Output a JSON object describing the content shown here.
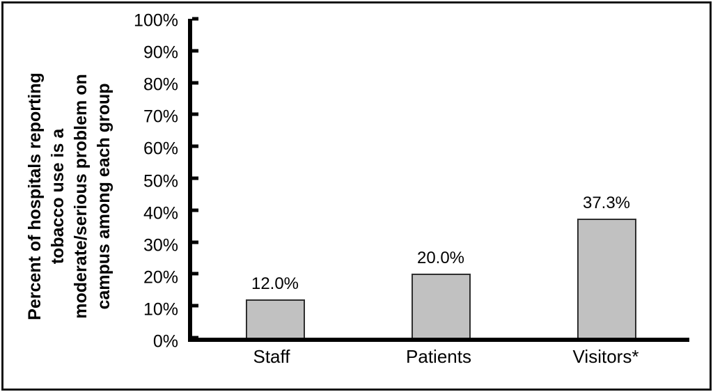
{
  "frame": {
    "background": "#ffffff",
    "border_color": "#141414"
  },
  "chart_data": {
    "type": "bar",
    "categories": [
      "Staff",
      "Patients",
      "Visitors*"
    ],
    "values": [
      12.0,
      20.0,
      37.3
    ],
    "bar_labels": [
      "12.0%",
      "20.0%",
      "37.3%"
    ],
    "title": "",
    "xlabel": "",
    "ylabel": "Percent of hospitals reporting\ntobacco use is a\nmoderate/serious problem on\ncampus among each group",
    "ylim": [
      0,
      100
    ],
    "ytick_step": 10,
    "ytick_labels": [
      "100%",
      "90%",
      "80%",
      "70%",
      "60%",
      "50%",
      "40%",
      "30%",
      "20%",
      "10%",
      "0%"
    ],
    "grid": false,
    "legend": false,
    "bar_fill": "#c1c1c1",
    "bar_border": "#2e2e2e",
    "axis_color": "#000000",
    "text_color": "#000000"
  }
}
